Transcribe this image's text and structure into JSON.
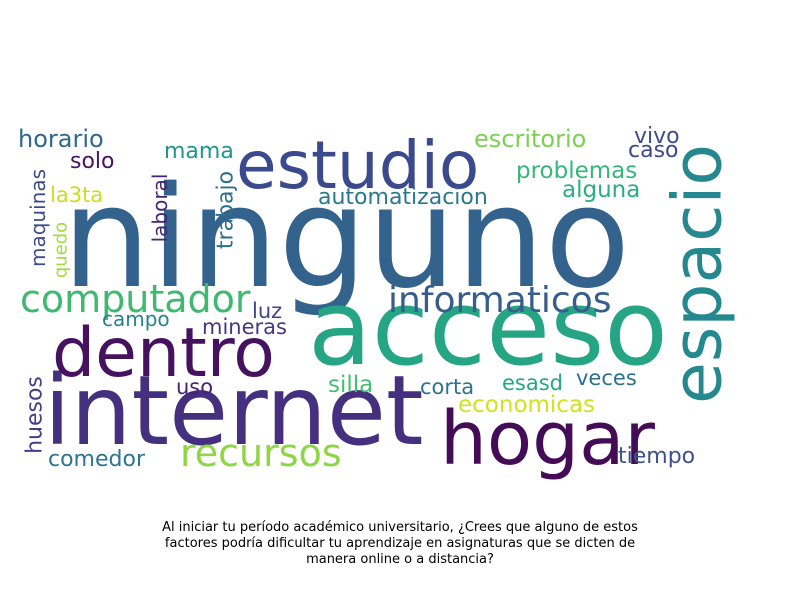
{
  "caption": "Al iniciar tu período académico universitario, ¿Crees que alguno de estos factores podría dificultar tu aprendizaje en asignaturas que se dicten de manera online o a distancia?",
  "chart_data": {
    "type": "wordcloud",
    "words": [
      {
        "text": "ninguno",
        "color": "#33628d"
      },
      {
        "text": "acceso",
        "color": "#26a584"
      },
      {
        "text": "internet",
        "color": "#45307f"
      },
      {
        "text": "hogar",
        "color": "#440b57"
      },
      {
        "text": "dentro",
        "color": "#46125f"
      },
      {
        "text": "estudio",
        "color": "#3a4a8c"
      },
      {
        "text": "espacio",
        "color": "#25888e"
      },
      {
        "text": "computador",
        "color": "#3eb96f"
      },
      {
        "text": "informaticos",
        "color": "#365d8d"
      },
      {
        "text": "recursos",
        "color": "#8fd644"
      },
      {
        "text": "escritorio",
        "color": "#7ad151"
      },
      {
        "text": "automatizacion",
        "color": "#2a788e"
      },
      {
        "text": "problemas",
        "color": "#36b77a"
      },
      {
        "text": "alguna",
        "color": "#2ab07f"
      },
      {
        "text": "horario",
        "color": "#31688e"
      },
      {
        "text": "vivo",
        "color": "#3c4f8a"
      },
      {
        "text": "caso",
        "color": "#3e4989"
      },
      {
        "text": "mama",
        "color": "#1f958b"
      },
      {
        "text": "solo",
        "color": "#471365"
      },
      {
        "text": "la3ta",
        "color": "#c8e020"
      },
      {
        "text": "maquinas",
        "color": "#3e4c8a"
      },
      {
        "text": "quedo",
        "color": "#a5db36"
      },
      {
        "text": "laboral",
        "color": "#482475"
      },
      {
        "text": "trabajo",
        "color": "#2e6e8e"
      },
      {
        "text": "luz",
        "color": "#3f4788"
      },
      {
        "text": "campo",
        "color": "#26828e"
      },
      {
        "text": "mineras",
        "color": "#453882"
      },
      {
        "text": "uso",
        "color": "#482173"
      },
      {
        "text": "silla",
        "color": "#44bf70"
      },
      {
        "text": "corta",
        "color": "#2c738e"
      },
      {
        "text": "esasd",
        "color": "#22a884"
      },
      {
        "text": "veces",
        "color": "#2d708e"
      },
      {
        "text": "economicas",
        "color": "#d2e21b"
      },
      {
        "text": "huesos",
        "color": "#423f85"
      },
      {
        "text": "comedor",
        "color": "#2b758e"
      },
      {
        "text": "tiempo",
        "color": "#3b528b"
      }
    ]
  }
}
